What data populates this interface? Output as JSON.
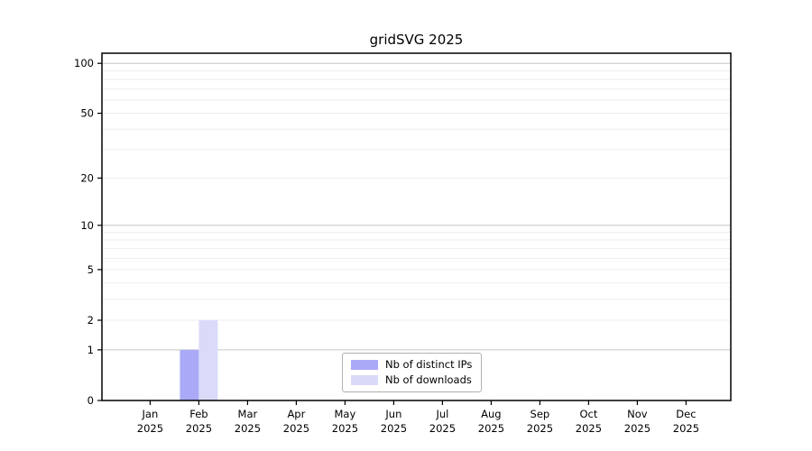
{
  "figure": {
    "title": "gridSVG 2025",
    "background": "#ffffff"
  },
  "chart_data": {
    "type": "bar",
    "title": "gridSVG 2025",
    "xlabel": "",
    "ylabel": "",
    "yscale": "log1p",
    "ylim": [
      0,
      115
    ],
    "categories": [
      {
        "label": "Jan",
        "sublabel": "2025"
      },
      {
        "label": "Feb",
        "sublabel": "2025"
      },
      {
        "label": "Mar",
        "sublabel": "2025"
      },
      {
        "label": "Apr",
        "sublabel": "2025"
      },
      {
        "label": "May",
        "sublabel": "2025"
      },
      {
        "label": "Jun",
        "sublabel": "2025"
      },
      {
        "label": "Jul",
        "sublabel": "2025"
      },
      {
        "label": "Aug",
        "sublabel": "2025"
      },
      {
        "label": "Sep",
        "sublabel": "2025"
      },
      {
        "label": "Oct",
        "sublabel": "2025"
      },
      {
        "label": "Nov",
        "sublabel": "2025"
      },
      {
        "label": "Dec",
        "sublabel": "2025"
      }
    ],
    "series": [
      {
        "name": "Nb of distinct IPs",
        "color": "#a9a9f7",
        "values": [
          0,
          1,
          0,
          0,
          0,
          0,
          0,
          0,
          0,
          0,
          0,
          0
        ]
      },
      {
        "name": "Nb of downloads",
        "color": "#dadaf9",
        "values": [
          0,
          2,
          0,
          0,
          0,
          0,
          0,
          0,
          0,
          0,
          0,
          0
        ]
      }
    ],
    "ytick_labels": [
      0,
      1,
      2,
      5,
      10,
      20,
      50,
      100
    ],
    "major_gridlines": [
      1,
      10,
      100
    ],
    "minor_gridlines": [
      2,
      3,
      4,
      5,
      6,
      7,
      8,
      9,
      20,
      30,
      40,
      50,
      60,
      70,
      80,
      90
    ],
    "colors": {
      "grid_major": "#c6c6c6",
      "grid_minor": "#eeeeee",
      "axis": "#000000",
      "tick_text": "#000000"
    },
    "legend": {
      "position": "lower center",
      "entries": [
        "Nb of distinct IPs",
        "Nb of downloads"
      ]
    }
  }
}
